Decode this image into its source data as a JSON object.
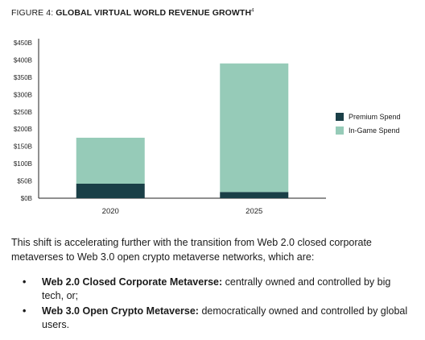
{
  "figure": {
    "prefix": "FIGURE 4: ",
    "title": "GLOBAL VIRTUAL WORLD REVENUE GROWTH",
    "footnote": "4"
  },
  "colors": {
    "premium": "#1a3f47",
    "ingame": "#96cbb8",
    "axis": "#222222"
  },
  "chart_data": {
    "type": "bar",
    "stacked": true,
    "categories": [
      "2020",
      "2025"
    ],
    "series": [
      {
        "name": "Premium Spend",
        "values": [
          42,
          18
        ],
        "color": "#1a3f47"
      },
      {
        "name": "In-Game Spend",
        "values": [
          133,
          372
        ],
        "color": "#96cbb8"
      }
    ],
    "y_ticks": [
      "$0B",
      "$50B",
      "$100B",
      "$150B",
      "$200B",
      "$250B",
      "$300B",
      "$350B",
      "$400B",
      "$450B"
    ],
    "ylim": [
      0,
      450
    ],
    "legend_position": "right",
    "grid": false
  },
  "body": {
    "paragraph": "This shift is accelerating further with the transition from Web 2.0 closed corporate metaverses to Web 3.0 open crypto metaverse networks, which are:",
    "bullets": [
      {
        "marker": "•",
        "bold": "Web 2.0 Closed Corporate Metaverse:",
        "text": " centrally owned and controlled by big tech, or;"
      },
      {
        "marker": "•",
        "bold": "Web 3.0 Open Crypto Metaverse:",
        "text": " democratically owned and controlled by global users."
      }
    ]
  }
}
